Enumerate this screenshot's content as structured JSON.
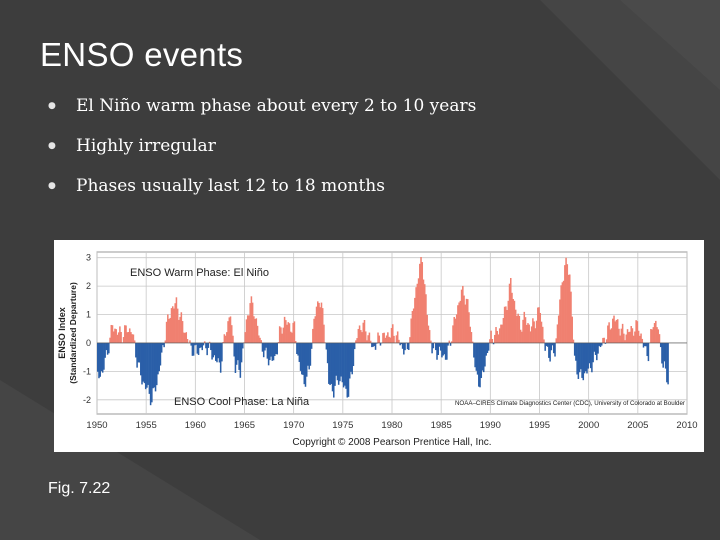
{
  "slide": {
    "title": "ENSO events",
    "bullets": [
      "El Niño warm phase about every 2 to 10 years",
      "Highly irregular",
      "Phases usually last 12 to 18 months"
    ],
    "caption": "Fig. 7.22"
  },
  "colors": {
    "background": "#3d3d3d",
    "warm": "#f08070",
    "cool": "#2a5fa8",
    "grid": "#c7c7c7"
  },
  "chart_data": {
    "type": "area",
    "title": "",
    "ylabel": "ENSO Index",
    "ylabel2": "(Standardized Departure)",
    "xlim": [
      1950,
      2010
    ],
    "ylim": [
      -2.5,
      3.2
    ],
    "x_ticks": [
      "1950",
      "1955",
      "1960",
      "1965",
      "1970",
      "1975",
      "1980",
      "1985",
      "1990",
      "1995",
      "2000",
      "2005",
      "2010"
    ],
    "x_tick_values": [
      1950,
      1955,
      1960,
      1965,
      1970,
      1975,
      1980,
      1985,
      1990,
      1995,
      2000,
      2005,
      2010
    ],
    "y_ticks": [
      "3",
      "2",
      "1",
      "0",
      "-1",
      "-2"
    ],
    "y_tick_values": [
      3,
      2,
      1,
      0,
      -1,
      -2
    ],
    "warm_label": "ENSO Warm Phase: El Niño",
    "cool_label": "ENSO Cool Phase: La Niña",
    "source": "NOAA–CIRES Climate Diagnostics Center (CDC), University of Colorado at Boulder",
    "copyright": "Copyright © 2008 Pearson Prentice Hall, Inc.",
    "series": [
      {
        "name": "ENSO Index",
        "x": [
          1950.0,
          1950.5,
          1951.0,
          1951.5,
          1952.0,
          1952.5,
          1953.0,
          1953.5,
          1954.0,
          1954.5,
          1955.0,
          1955.5,
          1956.0,
          1956.5,
          1957.0,
          1957.5,
          1958.0,
          1958.5,
          1959.0,
          1959.5,
          1960.0,
          1960.5,
          1961.0,
          1961.5,
          1962.0,
          1962.5,
          1963.0,
          1963.5,
          1964.0,
          1964.5,
          1965.0,
          1965.5,
          1966.0,
          1966.5,
          1967.0,
          1967.5,
          1968.0,
          1968.5,
          1969.0,
          1969.5,
          1970.0,
          1970.5,
          1971.0,
          1971.5,
          1972.0,
          1972.5,
          1973.0,
          1973.5,
          1974.0,
          1974.5,
          1975.0,
          1975.5,
          1976.0,
          1976.5,
          1977.0,
          1977.5,
          1978.0,
          1978.5,
          1979.0,
          1979.5,
          1980.0,
          1980.5,
          1981.0,
          1981.5,
          1982.0,
          1982.5,
          1983.0,
          1983.5,
          1984.0,
          1984.5,
          1985.0,
          1985.5,
          1986.0,
          1986.5,
          1987.0,
          1987.5,
          1988.0,
          1988.5,
          1989.0,
          1989.5,
          1990.0,
          1990.5,
          1991.0,
          1991.5,
          1992.0,
          1992.5,
          1993.0,
          1993.5,
          1994.0,
          1994.5,
          1995.0,
          1995.5,
          1996.0,
          1996.5,
          1997.0,
          1997.5,
          1998.0,
          1998.5,
          1999.0,
          1999.5,
          2000.0,
          2000.5,
          2001.0,
          2001.5,
          2002.0,
          2002.5,
          2003.0,
          2003.5,
          2004.0,
          2004.5,
          2005.0,
          2005.5,
          2006.0,
          2006.5,
          2007.0,
          2007.5,
          2008.0
        ],
        "values": [
          -1.2,
          -1.0,
          -0.3,
          0.6,
          0.4,
          0.3,
          0.5,
          0.4,
          -0.6,
          -1.3,
          -1.6,
          -2.0,
          -1.4,
          -0.5,
          0.6,
          1.2,
          1.4,
          0.8,
          0.3,
          -0.2,
          -0.3,
          -0.2,
          -0.1,
          -0.3,
          -0.6,
          -0.8,
          0.4,
          1.0,
          -0.8,
          -1.0,
          0.4,
          1.5,
          1.0,
          0.1,
          -0.4,
          -0.6,
          -0.6,
          0.3,
          0.8,
          0.6,
          0.5,
          -0.8,
          -1.4,
          -1.0,
          0.8,
          1.6,
          0.8,
          -1.4,
          -1.7,
          -1.2,
          -1.5,
          -1.8,
          -0.6,
          0.5,
          0.6,
          0.3,
          -0.2,
          0.1,
          0.2,
          0.3,
          0.4,
          0.2,
          -0.2,
          -0.3,
          1.0,
          2.2,
          3.0,
          1.0,
          -0.2,
          -0.3,
          -0.4,
          -0.5,
          0.3,
          1.1,
          1.8,
          1.6,
          0.4,
          -1.2,
          -1.4,
          -0.5,
          0.2,
          0.3,
          0.6,
          1.2,
          2.1,
          1.2,
          0.6,
          0.9,
          0.5,
          0.8,
          1.2,
          -0.2,
          -0.4,
          -0.3,
          1.5,
          2.8,
          2.5,
          -0.6,
          -1.2,
          -1.1,
          -0.9,
          -0.6,
          -0.2,
          0.1,
          0.5,
          0.9,
          0.6,
          0.3,
          0.4,
          0.5,
          0.6,
          -0.1,
          -0.4,
          0.8,
          0.5,
          -0.8,
          -1.3
        ]
      }
    ]
  }
}
